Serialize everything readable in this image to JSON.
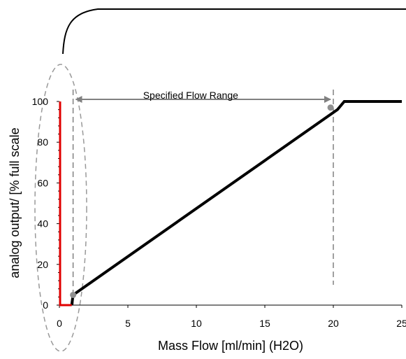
{
  "chart_data": {
    "type": "line",
    "title": "",
    "xlabel": "Mass Flow [ml/min] (H2O)",
    "ylabel": "analog output/ [% full scale",
    "xlim": [
      0,
      25
    ],
    "ylim": [
      0,
      100
    ],
    "x_ticks": [
      0,
      5,
      10,
      15,
      20,
      25
    ],
    "y_ticks": [
      0,
      20,
      40,
      60,
      80,
      100
    ],
    "grid": false,
    "legend": "none",
    "series": [
      {
        "color": "#000000",
        "x": [
          0.9,
          1.0,
          20.3,
          20.8,
          25
        ],
        "y": [
          0,
          5,
          96,
          100,
          100
        ]
      },
      {
        "color": "#e00000",
        "x": [
          0.05,
          0.05,
          0.9
        ],
        "y": [
          100,
          0,
          0
        ]
      }
    ],
    "markers": [
      {
        "x": 1.0,
        "y": 5,
        "color": "#909090"
      },
      {
        "x": 19.8,
        "y": 97,
        "color": "#909090"
      }
    ],
    "annotations": {
      "range_label": "Specified  Flow Range",
      "range_start": 1.0,
      "range_end": 20.0
    },
    "colors": {
      "line": "#000000",
      "start_region": "#e00000",
      "guides": "#808080"
    }
  }
}
